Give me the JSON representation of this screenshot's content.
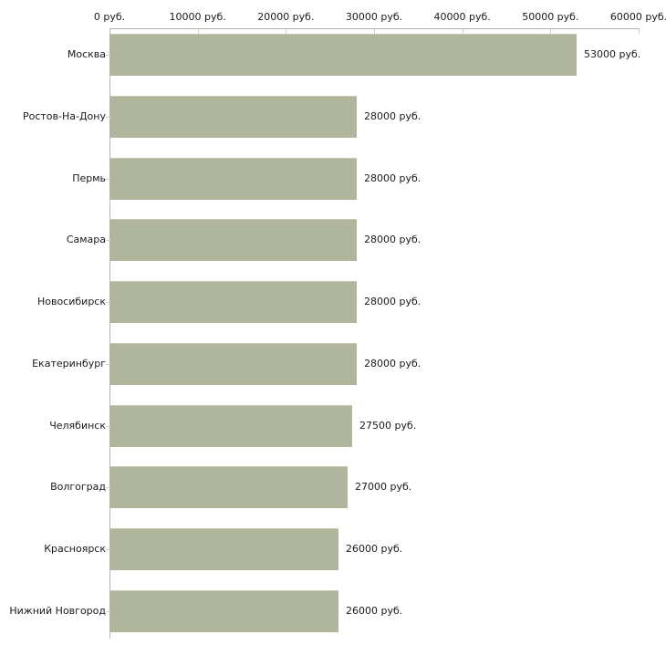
{
  "chart_data": {
    "type": "bar",
    "orientation": "horizontal",
    "title": "",
    "categories": [
      "Москва",
      "Ростов-На-Дону",
      "Пермь",
      "Самара",
      "Новосибирск",
      "Екатеринбург",
      "Челябинск",
      "Волгоград",
      "Красноярск",
      "Нижний Новгород"
    ],
    "values": [
      53000,
      28000,
      28000,
      28000,
      28000,
      28000,
      27500,
      27000,
      26000,
      26000
    ],
    "value_labels": [
      "53000 руб.",
      "28000 руб.",
      "28000 руб.",
      "28000 руб.",
      "28000 руб.",
      "28000 руб.",
      "27500 руб.",
      "27000 руб.",
      "26000 руб.",
      "26000 руб."
    ],
    "x_axis": {
      "position": "top",
      "min": 0,
      "max": 60000,
      "tick_values": [
        0,
        10000,
        20000,
        30000,
        40000,
        50000,
        60000
      ],
      "tick_labels": [
        "0 руб.",
        "10000 руб.",
        "20000 руб.",
        "30000 руб.",
        "40000 руб.",
        "50000 руб.",
        "60000 руб."
      ]
    },
    "legend": "none",
    "grid": "off",
    "colors": {
      "bar_fill": "#b0b69b",
      "bar_edge_top": "#c6cab1",
      "axis_line": "#b3b3b3",
      "tick_mark": "#d5d7bb",
      "text": "#1a1a1a",
      "background": "#ffffff"
    }
  }
}
